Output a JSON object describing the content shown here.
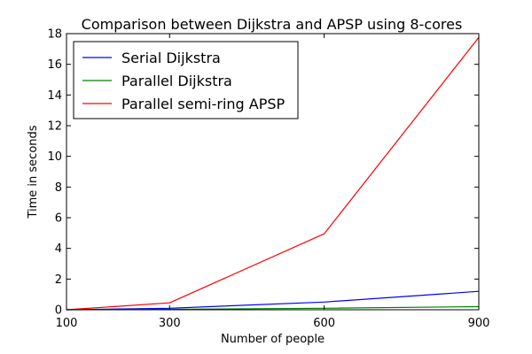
{
  "chart_data": {
    "type": "line",
    "title": "Comparison between Dijkstra and APSP using 8-cores",
    "xlabel": "Number of people",
    "ylabel": "Time in seconds",
    "x": [
      100,
      300,
      600,
      900
    ],
    "xticks": [
      "100",
      "300",
      "600",
      "900"
    ],
    "xlim": [
      100,
      900
    ],
    "yticks": [
      "0",
      "2",
      "4",
      "6",
      "8",
      "10",
      "12",
      "14",
      "16",
      "18"
    ],
    "ylim": [
      0,
      18
    ],
    "grid": false,
    "legend_position": "top-left",
    "series": [
      {
        "name": "Serial Dijkstra",
        "color": "#0000ff",
        "values": [
          0.0,
          0.1,
          0.5,
          1.2
        ]
      },
      {
        "name": "Parallel Dijkstra",
        "color": "#008000",
        "values": [
          0.0,
          0.03,
          0.1,
          0.2
        ]
      },
      {
        "name": "Parallel semi-ring APSP",
        "color": "#ff0000",
        "values": [
          0.0,
          0.45,
          4.95,
          17.75
        ]
      }
    ]
  }
}
